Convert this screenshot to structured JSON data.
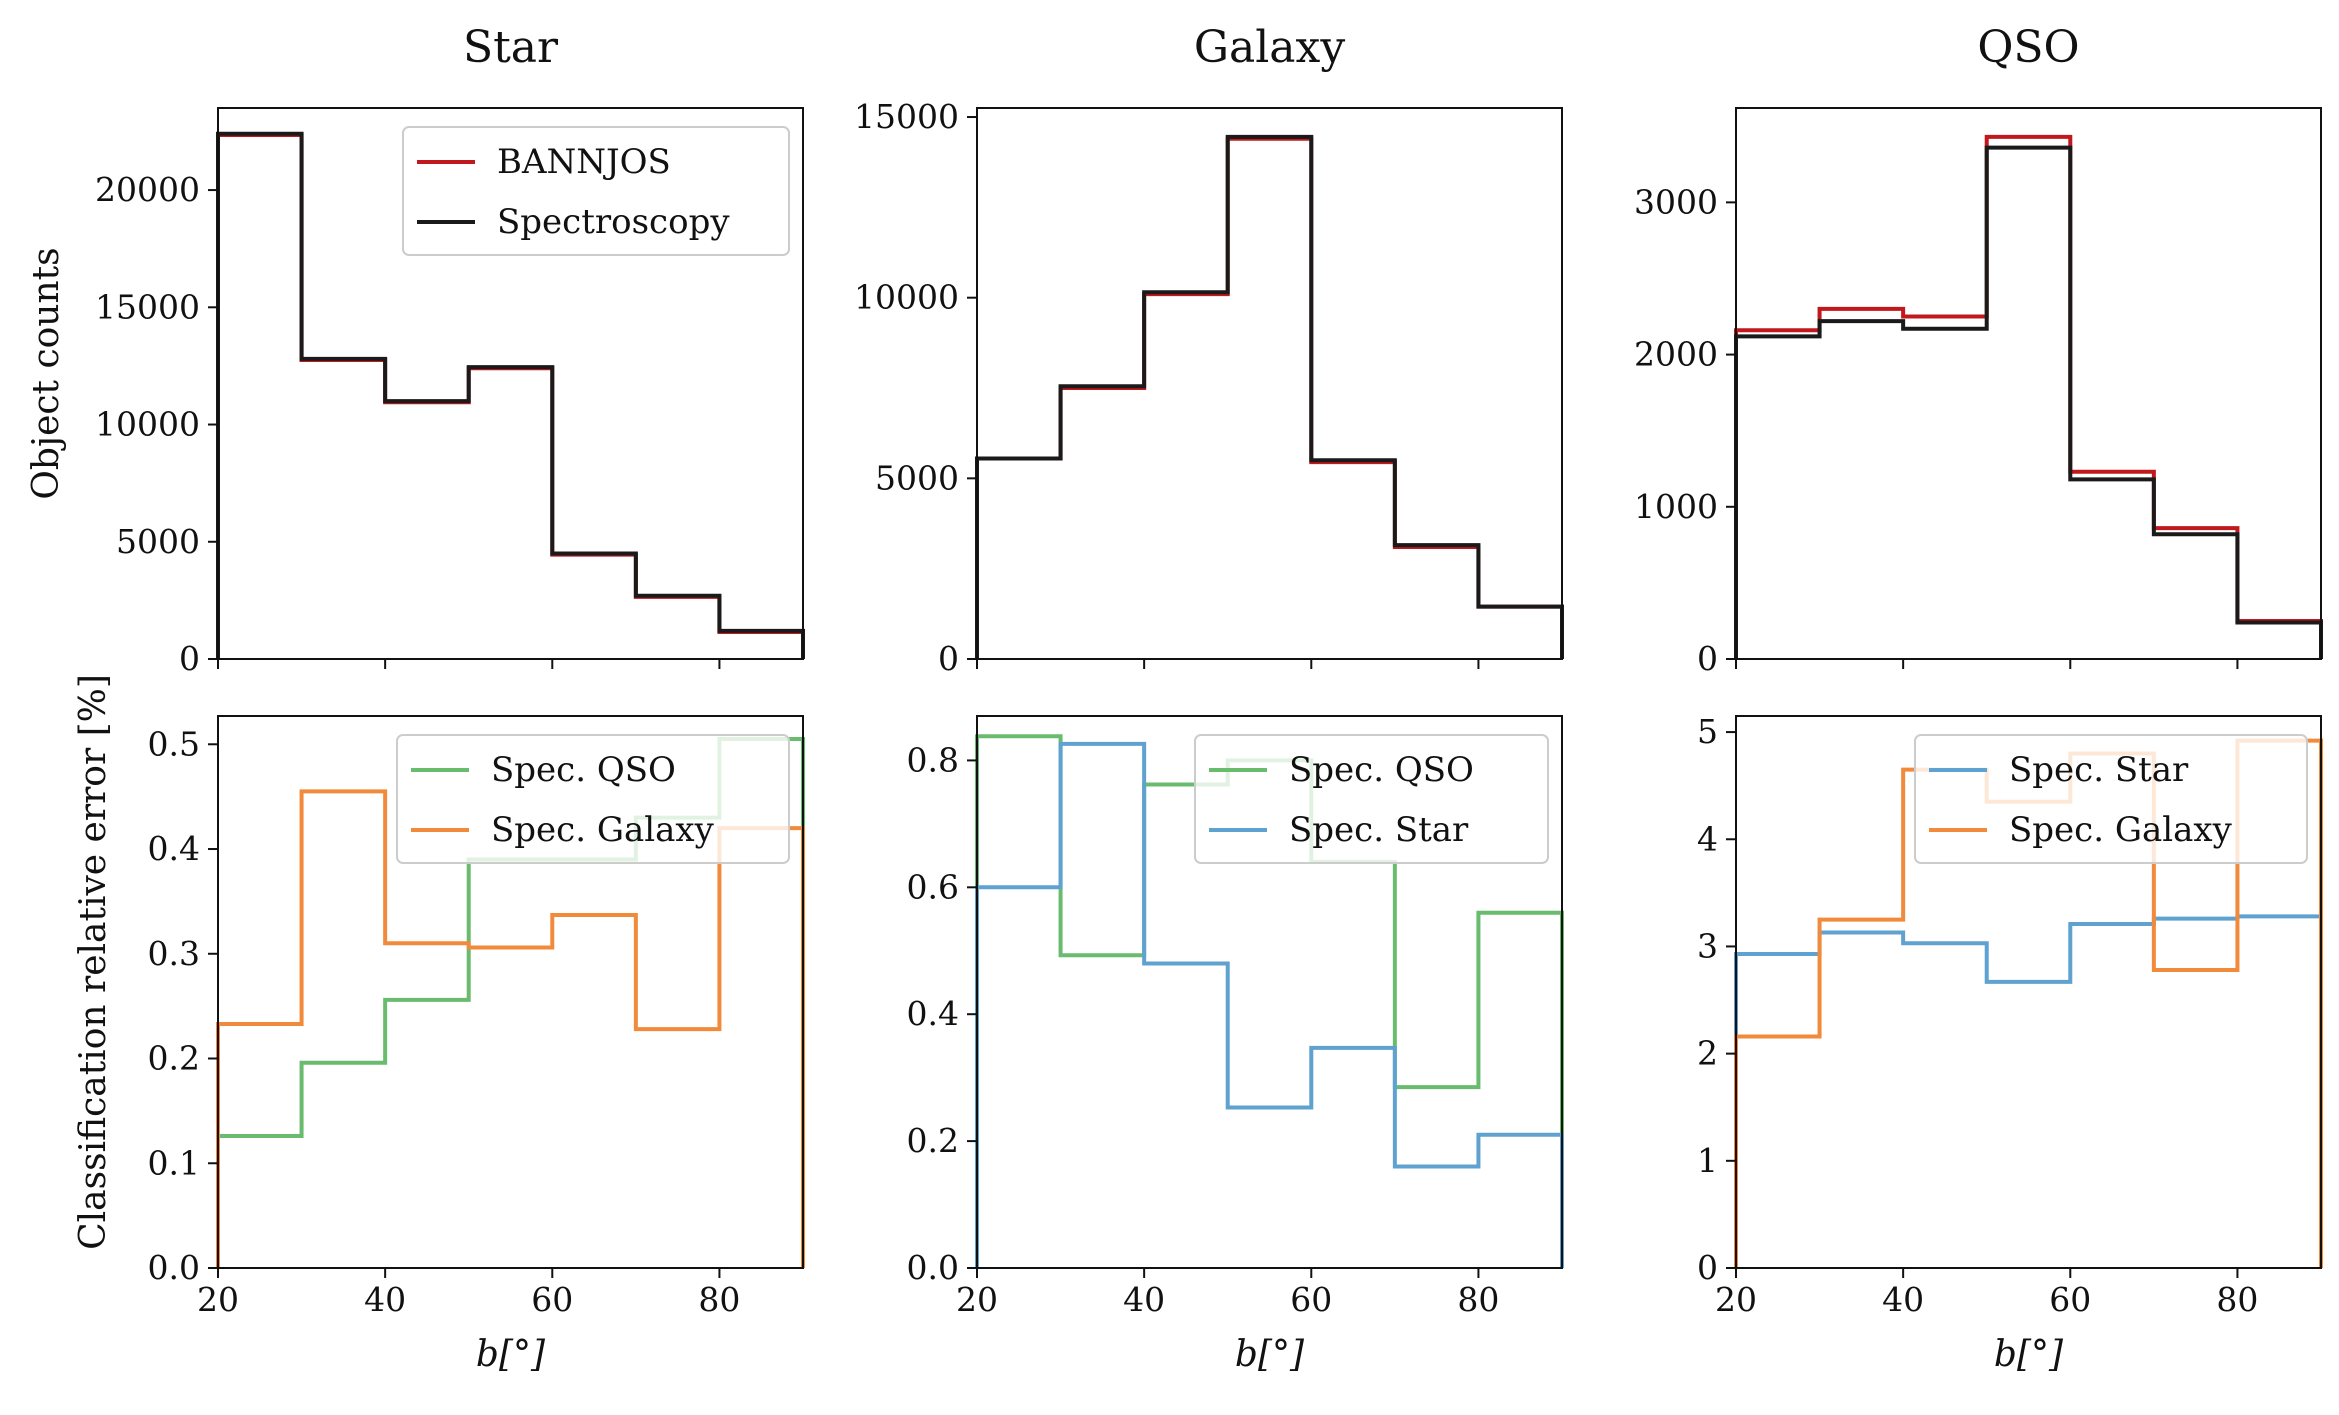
{
  "chart_data": [
    {
      "type": "line",
      "step": true,
      "panel": "top",
      "title": "Star",
      "xlabel": "",
      "ylabel": "Object counts",
      "xlim": [
        20,
        90
      ],
      "ylim": [
        0,
        23500
      ],
      "xticks": [
        "20",
        "40",
        "60",
        "80"
      ],
      "show_xtick_labels": false,
      "yticks": [
        {
          "v": 0,
          "t": "0"
        },
        {
          "v": 5000,
          "t": "5000"
        },
        {
          "v": 10000,
          "t": "10000"
        },
        {
          "v": 15000,
          "t": "15000"
        },
        {
          "v": 20000,
          "t": "20000"
        }
      ],
      "bin_edges": [
        20,
        30,
        40,
        50,
        60,
        70,
        80,
        90
      ],
      "legend_position": "top-right",
      "series": [
        {
          "name": "BANNJOS",
          "color": "#c0181d",
          "values": [
            22350,
            12750,
            10950,
            12400,
            4450,
            2650,
            1150
          ]
        },
        {
          "name": "Spectroscopy",
          "color": "#1a1a1a",
          "values": [
            22400,
            12800,
            11000,
            12450,
            4500,
            2700,
            1200
          ]
        }
      ]
    },
    {
      "type": "line",
      "step": true,
      "panel": "top",
      "title": "Galaxy",
      "xlabel": "",
      "ylabel": "",
      "xlim": [
        20,
        90
      ],
      "ylim": [
        0,
        15250
      ],
      "xticks": [
        "20",
        "40",
        "60",
        "80"
      ],
      "show_xtick_labels": false,
      "yticks": [
        {
          "v": 0,
          "t": "0"
        },
        {
          "v": 5000,
          "t": "5000"
        },
        {
          "v": 10000,
          "t": "10000"
        },
        {
          "v": 15000,
          "t": "15000"
        }
      ],
      "bin_edges": [
        20,
        30,
        40,
        50,
        60,
        70,
        80,
        90
      ],
      "legend_position": "none",
      "series": [
        {
          "name": "BANNJOS",
          "color": "#c0181d",
          "values": [
            5550,
            7500,
            10100,
            14400,
            5450,
            3100,
            1450
          ]
        },
        {
          "name": "Spectroscopy",
          "color": "#1a1a1a",
          "values": [
            5550,
            7550,
            10150,
            14450,
            5500,
            3150,
            1450
          ]
        }
      ]
    },
    {
      "type": "line",
      "step": true,
      "panel": "top",
      "title": "QSO",
      "xlabel": "",
      "ylabel": "",
      "xlim": [
        20,
        90
      ],
      "ylim": [
        0,
        3620
      ],
      "xticks": [
        "20",
        "40",
        "60",
        "80"
      ],
      "show_xtick_labels": false,
      "yticks": [
        {
          "v": 0,
          "t": "0"
        },
        {
          "v": 1000,
          "t": "1000"
        },
        {
          "v": 2000,
          "t": "2000"
        },
        {
          "v": 3000,
          "t": "3000"
        }
      ],
      "bin_edges": [
        20,
        30,
        40,
        50,
        60,
        70,
        80,
        90
      ],
      "legend_position": "none",
      "series": [
        {
          "name": "BANNJOS",
          "color": "#c0181d",
          "values": [
            2160,
            2300,
            2250,
            3430,
            1230,
            860,
            250
          ]
        },
        {
          "name": "Spectroscopy",
          "color": "#1a1a1a",
          "values": [
            2120,
            2220,
            2170,
            3360,
            1180,
            820,
            240
          ]
        }
      ]
    },
    {
      "type": "line",
      "step": true,
      "panel": "bottom",
      "title": "",
      "xlabel": "b[°]",
      "ylabel": "Classification relative error [%]",
      "xlim": [
        20,
        90
      ],
      "ylim": [
        0,
        0.527
      ],
      "xticks": [
        "20",
        "40",
        "60",
        "80"
      ],
      "show_xtick_labels": true,
      "yticks": [
        {
          "v": 0,
          "t": "0.0"
        },
        {
          "v": 0.1,
          "t": "0.1"
        },
        {
          "v": 0.2,
          "t": "0.2"
        },
        {
          "v": 0.3,
          "t": "0.3"
        },
        {
          "v": 0.4,
          "t": "0.4"
        },
        {
          "v": 0.5,
          "t": "0.5"
        }
      ],
      "bin_edges": [
        20,
        30,
        40,
        50,
        60,
        70,
        80,
        90
      ],
      "legend_position": "top-right",
      "series": [
        {
          "name": "Spec. QSO",
          "color": "#69bc6e",
          "values": [
            0.126,
            0.196,
            0.256,
            0.39,
            0.39,
            0.43,
            0.505
          ]
        },
        {
          "name": "Spec. Galaxy",
          "color": "#f28a3c",
          "values": [
            0.233,
            0.455,
            0.31,
            0.306,
            0.337,
            0.228,
            0.42
          ]
        }
      ]
    },
    {
      "type": "line",
      "step": true,
      "panel": "bottom",
      "title": "",
      "xlabel": "b[°]",
      "ylabel": "",
      "xlim": [
        20,
        90
      ],
      "ylim": [
        0,
        0.87
      ],
      "xticks": [
        "20",
        "40",
        "60",
        "80"
      ],
      "show_xtick_labels": true,
      "yticks": [
        {
          "v": 0,
          "t": "0.0"
        },
        {
          "v": 0.2,
          "t": "0.2"
        },
        {
          "v": 0.4,
          "t": "0.4"
        },
        {
          "v": 0.6,
          "t": "0.6"
        },
        {
          "v": 0.8,
          "t": "0.8"
        }
      ],
      "bin_edges": [
        20,
        30,
        40,
        50,
        60,
        70,
        80,
        90
      ],
      "legend_position": "top-right",
      "series": [
        {
          "name": "Spec. QSO",
          "color": "#69bc6e",
          "values": [
            0.838,
            0.493,
            0.762,
            0.8,
            0.64,
            0.285,
            0.56
          ]
        },
        {
          "name": "Spec. Star",
          "color": "#5fa2cf",
          "values": [
            0.6,
            0.826,
            0.48,
            0.253,
            0.347,
            0.16,
            0.21
          ]
        }
      ]
    },
    {
      "type": "line",
      "step": true,
      "panel": "bottom",
      "title": "",
      "xlabel": "b[°]",
      "ylabel": "",
      "xlim": [
        20,
        90
      ],
      "ylim": [
        0,
        5.15
      ],
      "xticks": [
        "20",
        "40",
        "60",
        "80"
      ],
      "show_xtick_labels": true,
      "yticks": [
        {
          "v": 0,
          "t": "0"
        },
        {
          "v": 1,
          "t": "1"
        },
        {
          "v": 2,
          "t": "2"
        },
        {
          "v": 3,
          "t": "3"
        },
        {
          "v": 4,
          "t": "4"
        },
        {
          "v": 5,
          "t": "5"
        }
      ],
      "bin_edges": [
        20,
        30,
        40,
        50,
        60,
        70,
        80,
        90
      ],
      "legend_position": "top-right",
      "series": [
        {
          "name": "Spec. Star",
          "color": "#5fa2cf",
          "values": [
            2.93,
            3.13,
            3.03,
            2.67,
            3.21,
            3.26,
            3.28
          ]
        },
        {
          "name": "Spec. Galaxy",
          "color": "#f28a3c",
          "values": [
            2.16,
            3.25,
            4.65,
            4.35,
            4.8,
            2.78,
            4.92
          ]
        }
      ]
    }
  ]
}
